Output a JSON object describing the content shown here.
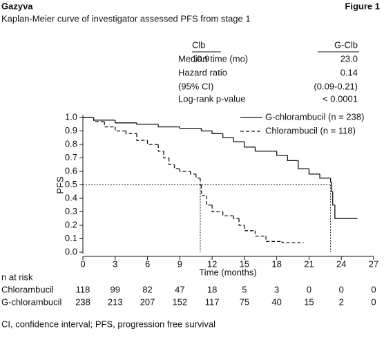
{
  "chart_data": {
    "type": "step",
    "brand": "Gazyva",
    "figure": "Figure 1",
    "title": "Kaplan-Meier curve of investigator assessed PFS from stage 1",
    "stats": {
      "headers": [
        "Clb",
        "G-Clb"
      ],
      "median_label": "Median time (mo)",
      "medians": [
        10.9,
        {
          "value": 23,
          "label": "23.0"
        }
      ],
      "hazard_label": "Hazard ratio",
      "hazard_ratio": 0.14,
      "ci_label": "(95% CI)",
      "ci": "(0.09-0.21)",
      "p_label": "Log-rank p-value",
      "p": "< 0.0001"
    },
    "xlabel": "Time (months)",
    "ylabel": "PFS",
    "xlim": [
      0,
      27
    ],
    "ylim": [
      0,
      1
    ],
    "xticks": [
      0,
      3,
      6,
      9,
      12,
      15,
      18,
      21,
      24,
      27
    ],
    "yticks": [
      {
        "value": 0,
        "label": "0.0"
      },
      0.1,
      0.2,
      0.3,
      0.4,
      0.5,
      0.6,
      0.7,
      0.8,
      0.9,
      {
        "value": 1,
        "label": "1.0"
      }
    ],
    "series": [
      {
        "name": "G-chlorambucil (n = 238)",
        "color": "#111111",
        "dash": false,
        "x": [
          0,
          1,
          3,
          5,
          7,
          9,
          11,
          12,
          13,
          14,
          15,
          16,
          18,
          19,
          20,
          21,
          22,
          23,
          23.1,
          23.2,
          23.4,
          25.5
        ],
        "values": [
          1,
          0.98,
          0.96,
          0.95,
          0.93,
          0.92,
          0.9,
          0.88,
          0.85,
          0.82,
          0.78,
          0.75,
          0.72,
          0.68,
          0.62,
          0.58,
          0.55,
          0.52,
          0.45,
          0.35,
          0.25,
          0.25
        ]
      },
      {
        "name": "Chlorambucil (n = 118)",
        "color": "#111111",
        "dash": true,
        "x": [
          0,
          1,
          2,
          3,
          4,
          5,
          6,
          7,
          7.5,
          8,
          8.5,
          9,
          10,
          10.5,
          10.9,
          11,
          11.5,
          12,
          13,
          14,
          14.5,
          15,
          16,
          17,
          18.5,
          20.5
        ],
        "values": [
          1,
          0.97,
          0.93,
          0.9,
          0.88,
          0.83,
          0.8,
          0.75,
          0.7,
          0.65,
          0.62,
          0.6,
          0.58,
          0.55,
          0.5,
          0.42,
          0.35,
          0.3,
          0.27,
          0.25,
          0.2,
          0.16,
          0.12,
          0.08,
          0.07,
          0.07
        ]
      }
    ],
    "at_risk": {
      "title": "n at risk",
      "rows": [
        {
          "name": "Chlorambucil",
          "values": [
            118,
            99,
            82,
            47,
            18,
            5,
            3,
            0,
            0,
            0
          ]
        },
        {
          "name": "G-chlorambucil",
          "values": [
            238,
            213,
            207,
            152,
            117,
            75,
            40,
            15,
            2,
            0
          ]
        }
      ]
    },
    "footnote": "CI, confidence interval; PFS, progression free survival"
  }
}
